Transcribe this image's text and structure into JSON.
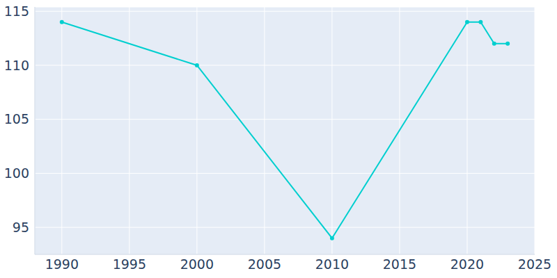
{
  "chart_data": {
    "type": "line",
    "x": [
      1990,
      2000,
      2010,
      2020,
      2021,
      2022,
      2023
    ],
    "values": [
      114,
      110,
      94,
      114,
      114,
      112,
      112
    ],
    "color": "#00cfcf",
    "xlim": [
      1988,
      2025
    ],
    "xticks": [
      1990,
      1995,
      2000,
      2005,
      2010,
      2015,
      2020,
      2025
    ],
    "ylim": [
      92.5,
      115.4
    ],
    "yticks": [
      95,
      100,
      105,
      110,
      115
    ],
    "grid": true,
    "marker": "circle"
  }
}
